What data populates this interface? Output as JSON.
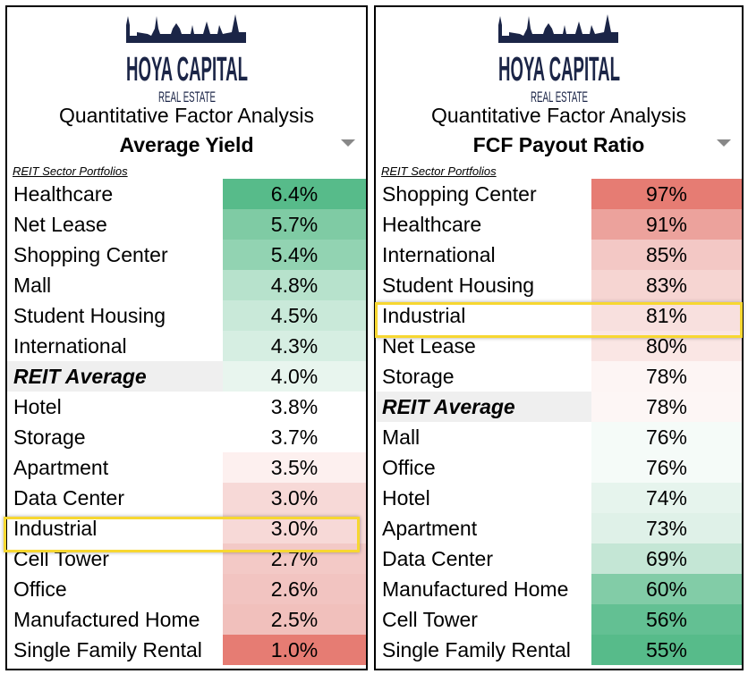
{
  "logo": {
    "line1": "HOYA CAPITAL",
    "line2": "REAL ESTATE"
  },
  "panels": [
    {
      "subtitle": "Quantitative Factor Analysis",
      "metric": "Average Yield",
      "section": "REIT Sector Portfolios",
      "rows": [
        {
          "label": "Healthcare",
          "value": "6.4%",
          "color": "#57bb8a"
        },
        {
          "label": "Net Lease",
          "value": "5.7%",
          "color": "#7fcba4"
        },
        {
          "label": "Shopping Center",
          "value": "5.4%",
          "color": "#92d3b2"
        },
        {
          "label": "Mall",
          "value": "4.8%",
          "color": "#b7e2cc"
        },
        {
          "label": "Student Housing",
          "value": "4.5%",
          "color": "#c9e9d9"
        },
        {
          "label": "International",
          "value": "4.3%",
          "color": "#d6eee2"
        },
        {
          "label": "REIT Average",
          "value": "4.0%",
          "color": "#e8f5ee",
          "avg": true
        },
        {
          "label": "Hotel",
          "value": "3.8%",
          "color": "#ffffff"
        },
        {
          "label": "Storage",
          "value": "3.7%",
          "color": "#ffffff"
        },
        {
          "label": "Apartment",
          "value": "3.5%",
          "color": "#fdf0ef"
        },
        {
          "label": "Data Center",
          "value": "3.0%",
          "color": "#f7d9d7"
        },
        {
          "label": "Industrial",
          "value": "3.0%",
          "color": "#f7d9d7",
          "highlight": true
        },
        {
          "label": "Cell Tower",
          "value": "2.7%",
          "color": "#f3c9c6"
        },
        {
          "label": "Office",
          "value": "2.6%",
          "color": "#f2c4c1"
        },
        {
          "label": "Manufactured Home",
          "value": "2.5%",
          "color": "#f1c0bc"
        },
        {
          "label": "Single Family Rental",
          "value": "1.0%",
          "color": "#e67c73"
        }
      ]
    },
    {
      "subtitle": "Quantitative Factor Analysis",
      "metric": "FCF Payout Ratio",
      "section": "REIT Sector Portfolios",
      "rows": [
        {
          "label": "Shopping Center",
          "value": "97%",
          "color": "#e67c73"
        },
        {
          "label": "Healthcare",
          "value": "91%",
          "color": "#eca29c"
        },
        {
          "label": "International",
          "value": "85%",
          "color": "#f3c8c5"
        },
        {
          "label": "Student Housing",
          "value": "83%",
          "color": "#f6d5d2"
        },
        {
          "label": "Industrial",
          "value": "81%",
          "color": "#f8e0de",
          "highlight": true
        },
        {
          "label": "Net Lease",
          "value": "80%",
          "color": "#fae6e4"
        },
        {
          "label": "Storage",
          "value": "78%",
          "color": "#fdf5f4"
        },
        {
          "label": "REIT Average",
          "value": "78%",
          "color": "#fdf6f5",
          "avg": true
        },
        {
          "label": "Mall",
          "value": "76%",
          "color": "#f5fbf8"
        },
        {
          "label": "Office",
          "value": "76%",
          "color": "#f5fbf8"
        },
        {
          "label": "Hotel",
          "value": "74%",
          "color": "#e6f4ed"
        },
        {
          "label": "Apartment",
          "value": "73%",
          "color": "#dff1e8"
        },
        {
          "label": "Data Center",
          "value": "69%",
          "color": "#c4e6d5"
        },
        {
          "label": "Manufactured Home",
          "value": "60%",
          "color": "#82cca7"
        },
        {
          "label": "Cell Tower",
          "value": "56%",
          "color": "#63c093"
        },
        {
          "label": "Single Family Rental",
          "value": "55%",
          "color": "#57bb8a"
        }
      ]
    }
  ],
  "highlight_color": "#f7d731"
}
